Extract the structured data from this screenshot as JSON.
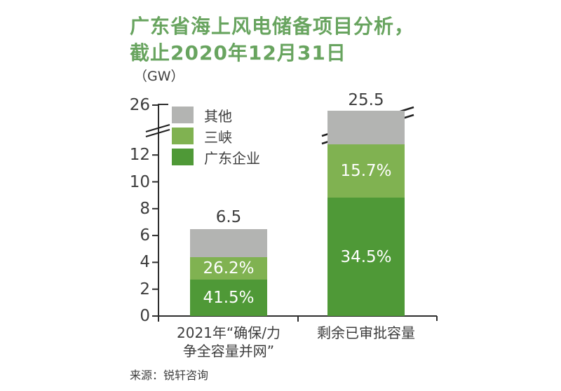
{
  "title": {
    "line1": "广东省海上风电储备项目分析，",
    "line2": "截止2020年12月31日"
  },
  "unit_label": "（GW）",
  "source": "来源：锐轩咨询",
  "colors": {
    "title_green": "#68a45f",
    "dark_green": "#4f9937",
    "light_green": "#80b251",
    "gray": "#b3b4b2",
    "text": "#3d3d3d",
    "axis": "#2d2d2d",
    "background": "#ffffff"
  },
  "legend": {
    "items": [
      {
        "label": "其他",
        "color": "#b3b4b2"
      },
      {
        "label": "三峡",
        "color": "#80b251"
      },
      {
        "label": "广东企业",
        "color": "#4f9937"
      }
    ]
  },
  "chart_data": {
    "type": "bar",
    "subtype": "stacked-column-with-broken-y-axis",
    "title": "广东省海上风电储备项目分析，截止2020年12月31日",
    "unit": "GW",
    "ylabel": "（GW）",
    "yticks": [
      0,
      2,
      4,
      6,
      8,
      10,
      12,
      26
    ],
    "axis_break_between": [
      12,
      26
    ],
    "grid": false,
    "legend_position": "top-left-inside",
    "categories": [
      "2021年“确保/力争全容量并网”",
      "剩余已审批容量"
    ],
    "category_display": [
      "2021年“确保/力\n争全容量并网”",
      "剩余已审批容量"
    ],
    "totals": [
      6.5,
      25.5
    ],
    "total_labels": [
      "6.5",
      "25.5"
    ],
    "series": [
      {
        "name": "广东企业",
        "color": "#4f9937",
        "values": [
          2.7,
          8.8
        ],
        "pct_labels": [
          "41.5%",
          "34.5%"
        ]
      },
      {
        "name": "三峡",
        "color": "#80b251",
        "values": [
          1.7,
          4.0
        ],
        "pct_labels": [
          "26.2%",
          "15.7%"
        ]
      },
      {
        "name": "其他",
        "color": "#b3b4b2",
        "values": [
          2.1,
          12.7
        ],
        "pct_labels": [
          "",
          ""
        ],
        "display_values": [
          2.1,
          2.48
        ]
      }
    ]
  }
}
